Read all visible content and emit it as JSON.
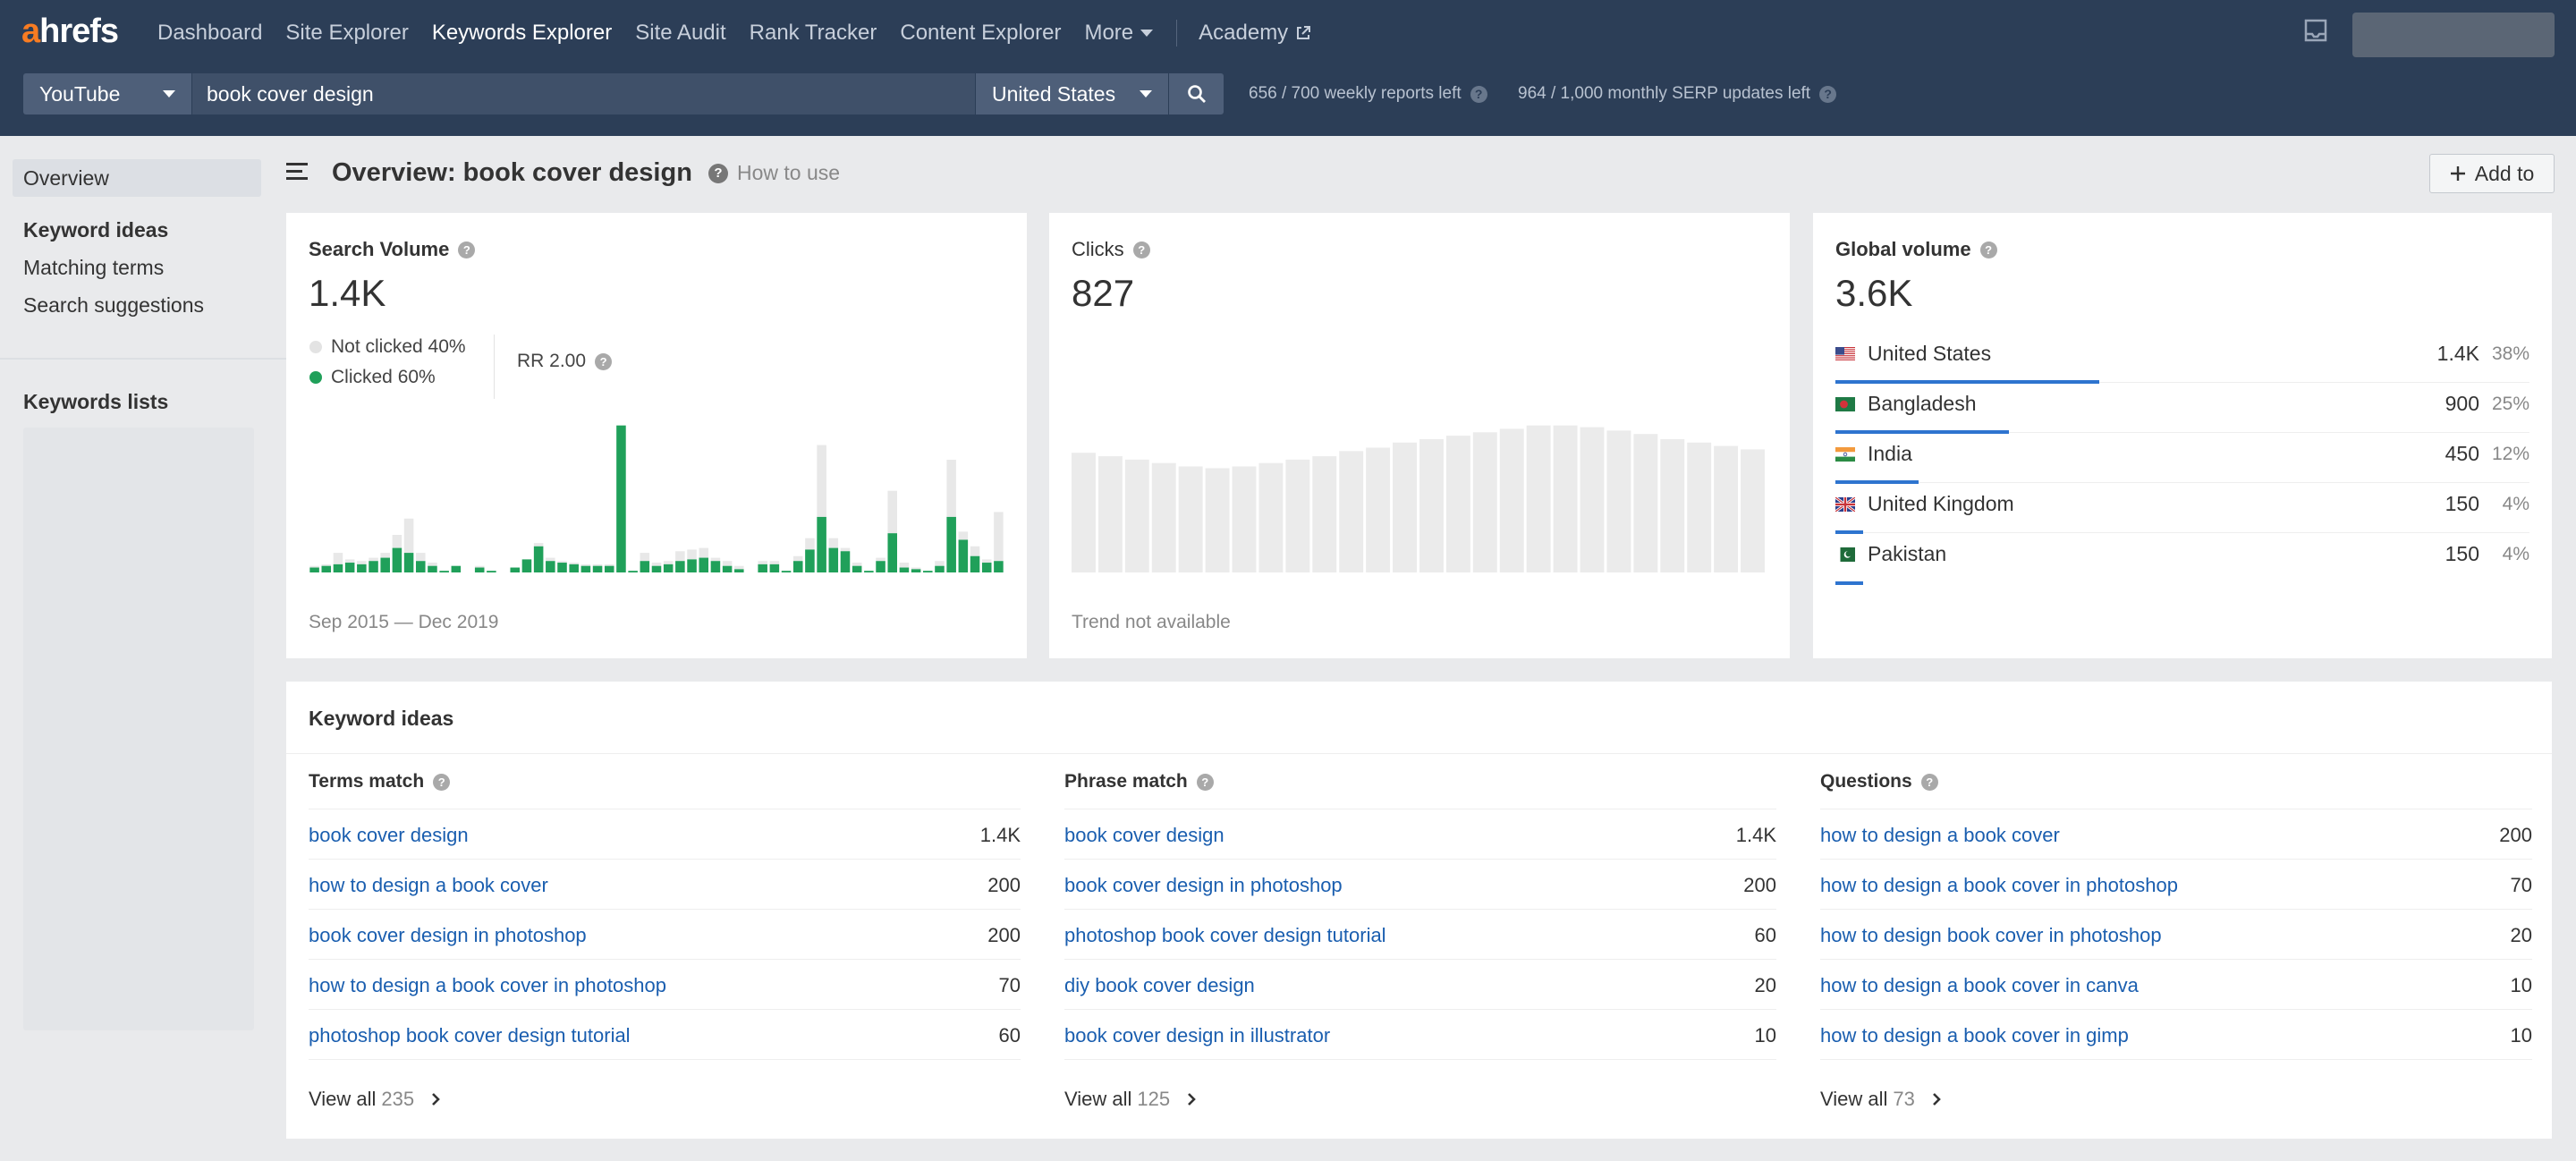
{
  "topbar": {
    "logo_a": "a",
    "logo_rest": "hrefs",
    "nav": [
      {
        "label": "Dashboard"
      },
      {
        "label": "Site Explorer"
      },
      {
        "label": "Keywords Explorer"
      },
      {
        "label": "Site Audit"
      },
      {
        "label": "Rank Tracker"
      },
      {
        "label": "Content Explorer"
      }
    ],
    "more_label": "More",
    "academy_label": "Academy"
  },
  "search": {
    "source": "YouTube",
    "keyword": "book cover design",
    "country": "United States",
    "weekly_reports": "656 / 700 weekly reports left",
    "serp_updates": "964 / 1,000 monthly SERP updates left"
  },
  "sidebar": {
    "overview": "Overview",
    "keyword_ideas_heading": "Keyword ideas",
    "links": [
      "Matching terms",
      "Search suggestions"
    ],
    "keyword_lists": "Keywords lists"
  },
  "header": {
    "title": "Overview: book cover design",
    "how_to": "How to use",
    "add_to": "Add to"
  },
  "search_volume": {
    "title": "Search Volume",
    "value": "1.4K",
    "not_clicked": "Not clicked 40%",
    "clicked": "Clicked 60%",
    "rr": "RR 2.00",
    "date_range": "Sep 2015 — Dec 2019"
  },
  "clicks": {
    "title": "Clicks",
    "value": "827",
    "note": "Trend not available"
  },
  "global_volume": {
    "title": "Global volume",
    "value": "3.6K",
    "countries": [
      {
        "name": "United States",
        "volume": "1.4K",
        "percent": "38%",
        "share": 0.38,
        "flag": "us-flag"
      },
      {
        "name": "Bangladesh",
        "volume": "900",
        "percent": "25%",
        "share": 0.25,
        "flag": "bd-flag"
      },
      {
        "name": "India",
        "volume": "450",
        "percent": "12%",
        "share": 0.12,
        "flag": "in-flag"
      },
      {
        "name": "United Kingdom",
        "volume": "150",
        "percent": "4%",
        "share": 0.04,
        "flag": "uk-flag"
      },
      {
        "name": "Pakistan",
        "volume": "150",
        "percent": "4%",
        "share": 0.04,
        "flag": "pk-flag"
      }
    ]
  },
  "keyword_ideas": {
    "title": "Keyword ideas",
    "columns": [
      {
        "heading": "Terms match",
        "rows": [
          {
            "keyword": "book cover design",
            "volume": "1.4K"
          },
          {
            "keyword": "how to design a book cover",
            "volume": "200"
          },
          {
            "keyword": "book cover design in photoshop",
            "volume": "200"
          },
          {
            "keyword": "how to design a book cover in photoshop",
            "volume": "70"
          },
          {
            "keyword": "photoshop book cover design tutorial",
            "volume": "60"
          }
        ],
        "view_all": "View all",
        "count": "235"
      },
      {
        "heading": "Phrase match",
        "rows": [
          {
            "keyword": "book cover design",
            "volume": "1.4K"
          },
          {
            "keyword": "book cover design in photoshop",
            "volume": "200"
          },
          {
            "keyword": "photoshop book cover design tutorial",
            "volume": "60"
          },
          {
            "keyword": "diy book cover design",
            "volume": "20"
          },
          {
            "keyword": "book cover design in illustrator",
            "volume": "10"
          }
        ],
        "view_all": "View all",
        "count": "125"
      },
      {
        "heading": "Questions",
        "rows": [
          {
            "keyword": "how to design a book cover",
            "volume": "200"
          },
          {
            "keyword": "how to design a book cover in photoshop",
            "volume": "70"
          },
          {
            "keyword": "how to design book cover in photoshop",
            "volume": "20"
          },
          {
            "keyword": "how to design a book cover in canva",
            "volume": "10"
          },
          {
            "keyword": "how to design a book cover in gimp",
            "volume": "10"
          }
        ],
        "view_all": "View all",
        "count": "73"
      }
    ]
  },
  "chart_data": [
    {
      "type": "bar",
      "title": "Search Volume",
      "stacked": true,
      "series": [
        {
          "name": "Clicked",
          "color": "#20a05a",
          "values": [
            3,
            4,
            5,
            6,
            5,
            7,
            9,
            15,
            12,
            7,
            4,
            1,
            4,
            0,
            3,
            1,
            0,
            3,
            8,
            16,
            7,
            6,
            5,
            4,
            4,
            4,
            90,
            1,
            7,
            4,
            5,
            7,
            8,
            9,
            7,
            4,
            2,
            0,
            5,
            5,
            1,
            7,
            14,
            34,
            15,
            13,
            4,
            1,
            7,
            24,
            3,
            2,
            1,
            4,
            34,
            20,
            10,
            6,
            7
          ],
          "colors_by_index": "clicked"
        },
        {
          "name": "Not clicked",
          "color": "#e8e8e8",
          "values": [
            1,
            1,
            7,
            2,
            2,
            2,
            3,
            8,
            21,
            5,
            2,
            0,
            0,
            0,
            1,
            0,
            0,
            0,
            0,
            2,
            2,
            1,
            1,
            1,
            1,
            1,
            0,
            0,
            5,
            2,
            2,
            6,
            6,
            6,
            2,
            3,
            2,
            0,
            2,
            2,
            0,
            3,
            7,
            44,
            6,
            2,
            2,
            0,
            2,
            26,
            3,
            1,
            0,
            3,
            35,
            5,
            6,
            2,
            30
          ]
        }
      ],
      "date_range": "Sep 2015 — Dec 2019"
    },
    {
      "type": "bar",
      "title": "Clicks",
      "series": [
        {
          "name": "Clicks",
          "color": "#e8e8e8",
          "values": [
            70,
            68,
            66,
            64,
            62,
            61,
            62,
            64,
            66,
            68,
            71,
            73,
            76,
            78,
            80,
            82,
            84,
            86,
            86,
            85,
            83,
            81,
            78,
            76,
            74,
            72
          ]
        }
      ]
    }
  ]
}
